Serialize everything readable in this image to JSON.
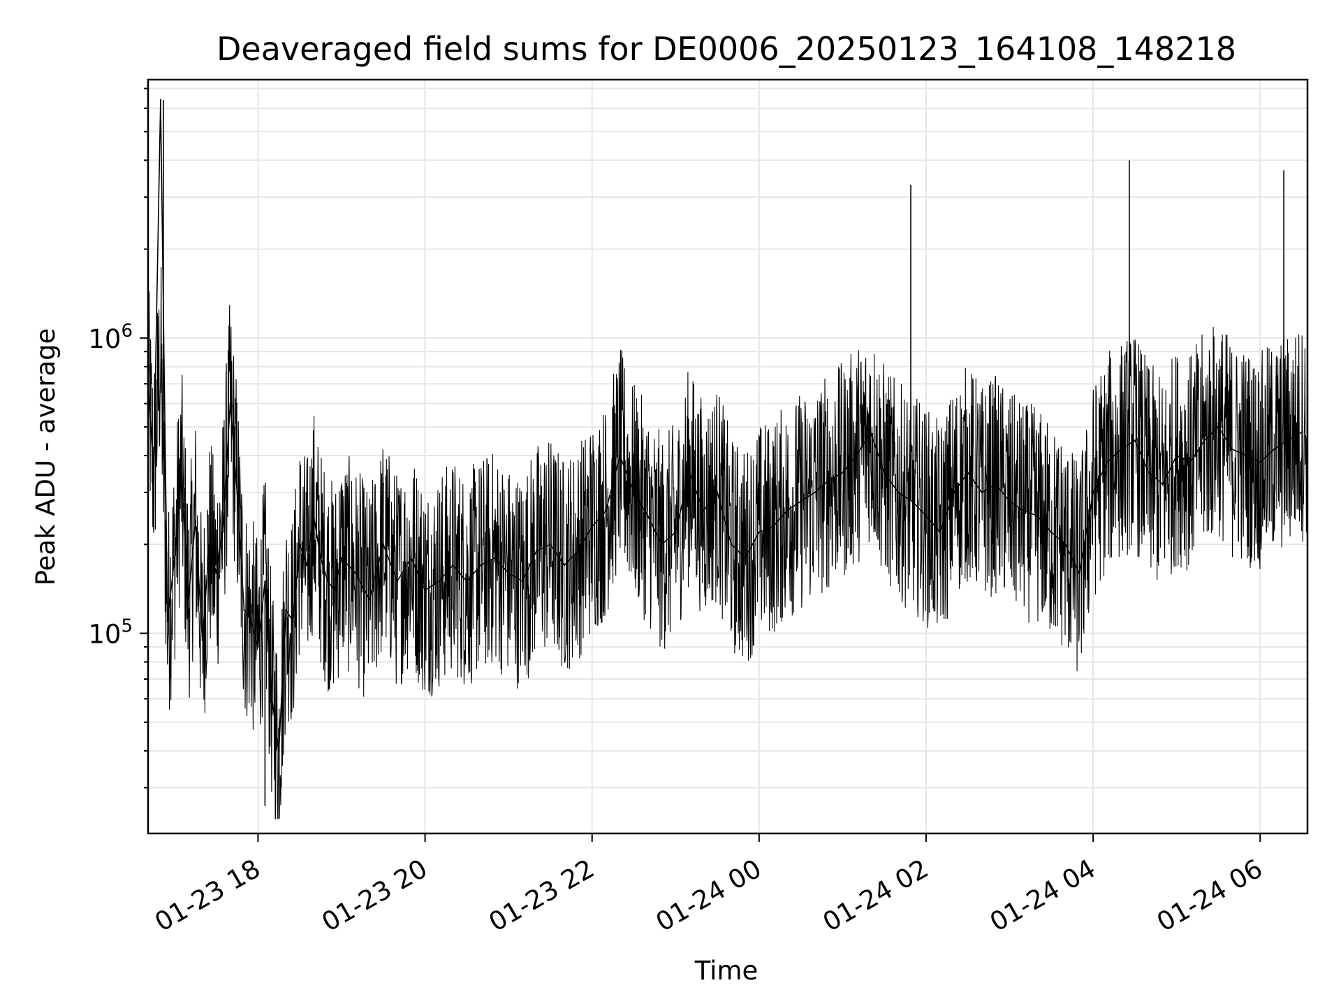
{
  "chart_data": {
    "type": "line",
    "title": "Deaveraged field sums for DE0006_20250123_164108_148218",
    "xlabel": "Time",
    "ylabel": "Peak ADU - average",
    "y_scale": "log",
    "ylim": [
      21000,
      7500000
    ],
    "xlim": [
      "2025-01-23 16:41",
      "2025-01-24 06:34"
    ],
    "grid": true,
    "line_color": "#000000",
    "grid_color": "#e6e6e6",
    "x_ticks": [
      {
        "value": "2025-01-23 18:00",
        "label": "01-23 18"
      },
      {
        "value": "2025-01-23 20:00",
        "label": "01-23 20"
      },
      {
        "value": "2025-01-23 22:00",
        "label": "01-23 22"
      },
      {
        "value": "2025-01-24 00:00",
        "label": "01-24 00"
      },
      {
        "value": "2025-01-24 02:00",
        "label": "01-24 02"
      },
      {
        "value": "2025-01-24 04:00",
        "label": "01-24 04"
      },
      {
        "value": "2025-01-24 06:00",
        "label": "01-24 06"
      }
    ],
    "y_ticks": [
      {
        "value": 100000,
        "base": "10",
        "exp": "5"
      },
      {
        "value": 1000000,
        "base": "10",
        "exp": "6"
      }
    ],
    "series": [
      {
        "values_note_source": "sampled",
        "x": [
          "2025-01-23 16:41",
          "2025-01-23 16:45",
          "2025-01-23 16:50",
          "2025-01-23 16:55",
          "2025-01-23 17:00",
          "2025-01-23 17:05",
          "2025-01-23 17:10",
          "2025-01-23 17:15",
          "2025-01-23 17:20",
          "2025-01-23 17:25",
          "2025-01-23 17:30",
          "2025-01-23 17:35",
          "2025-01-23 17:40",
          "2025-01-23 17:45",
          "2025-01-23 17:50",
          "2025-01-23 17:55",
          "2025-01-23 18:00",
          "2025-01-23 18:05",
          "2025-01-23 18:10",
          "2025-01-23 18:15",
          "2025-01-23 18:20",
          "2025-01-23 18:25",
          "2025-01-23 18:30",
          "2025-01-23 18:35",
          "2025-01-23 18:40",
          "2025-01-23 18:45",
          "2025-01-23 18:50",
          "2025-01-23 18:55",
          "2025-01-23 19:00",
          "2025-01-23 19:10",
          "2025-01-23 19:20",
          "2025-01-23 19:30",
          "2025-01-23 19:40",
          "2025-01-23 19:50",
          "2025-01-23 20:00",
          "2025-01-23 20:10",
          "2025-01-23 20:20",
          "2025-01-23 20:30",
          "2025-01-23 20:40",
          "2025-01-23 20:50",
          "2025-01-23 21:00",
          "2025-01-23 21:10",
          "2025-01-23 21:20",
          "2025-01-23 21:30",
          "2025-01-23 21:40",
          "2025-01-23 21:50",
          "2025-01-23 22:00",
          "2025-01-23 22:10",
          "2025-01-23 22:20",
          "2025-01-23 22:30",
          "2025-01-23 22:40",
          "2025-01-23 22:50",
          "2025-01-23 23:00",
          "2025-01-23 23:10",
          "2025-01-23 23:20",
          "2025-01-23 23:30",
          "2025-01-23 23:40",
          "2025-01-23 23:50",
          "2025-01-24 00:00",
          "2025-01-24 00:10",
          "2025-01-24 00:20",
          "2025-01-24 00:30",
          "2025-01-24 00:40",
          "2025-01-24 00:50",
          "2025-01-24 01:00",
          "2025-01-24 01:10",
          "2025-01-24 01:20",
          "2025-01-24 01:30",
          "2025-01-24 01:40",
          "2025-01-24 01:50",
          "2025-01-24 02:00",
          "2025-01-24 02:10",
          "2025-01-24 02:20",
          "2025-01-24 02:30",
          "2025-01-24 02:40",
          "2025-01-24 02:50",
          "2025-01-24 03:00",
          "2025-01-24 03:10",
          "2025-01-24 03:20",
          "2025-01-24 03:30",
          "2025-01-24 03:40",
          "2025-01-24 03:50",
          "2025-01-24 04:00",
          "2025-01-24 04:10",
          "2025-01-24 04:20",
          "2025-01-24 04:30",
          "2025-01-24 04:40",
          "2025-01-24 04:50",
          "2025-01-24 05:00",
          "2025-01-24 05:10",
          "2025-01-24 05:20",
          "2025-01-24 05:30",
          "2025-01-24 05:40",
          "2025-01-24 05:50",
          "2025-01-24 06:00",
          "2025-01-24 06:10",
          "2025-01-24 06:20",
          "2025-01-24 06:30"
        ],
        "values": [
          700000,
          350000,
          6400000,
          110000,
          180000,
          350000,
          130000,
          240000,
          95000,
          200000,
          160000,
          240000,
          600000,
          300000,
          120000,
          110000,
          90000,
          150000,
          60000,
          40000,
          120000,
          110000,
          200000,
          170000,
          250000,
          180000,
          150000,
          140000,
          180000,
          160000,
          130000,
          200000,
          150000,
          180000,
          140000,
          150000,
          170000,
          150000,
          170000,
          180000,
          160000,
          150000,
          190000,
          200000,
          170000,
          190000,
          230000,
          260000,
          400000,
          300000,
          250000,
          200000,
          220000,
          350000,
          260000,
          300000,
          200000,
          180000,
          220000,
          230000,
          260000,
          280000,
          300000,
          330000,
          350000,
          400000,
          480000,
          350000,
          300000,
          280000,
          250000,
          220000,
          300000,
          350000,
          300000,
          320000,
          280000,
          260000,
          250000,
          220000,
          200000,
          160000,
          300000,
          380000,
          420000,
          450000,
          350000,
          320000,
          400000,
          380000,
          450000,
          500000,
          420000,
          400000,
          380000,
          420000,
          450000,
          480000
        ]
      }
    ],
    "annotations": [
      {
        "x": "2025-01-23 16:52",
        "value": 6400000
      },
      {
        "x": "2025-01-23 18:05",
        "value": 26000
      },
      {
        "x": "2025-01-24 01:49",
        "value": 3300000
      },
      {
        "x": "2025-01-24 04:26",
        "value": 4000000
      },
      {
        "x": "2025-01-24 06:17",
        "value": 3700000
      }
    ]
  }
}
